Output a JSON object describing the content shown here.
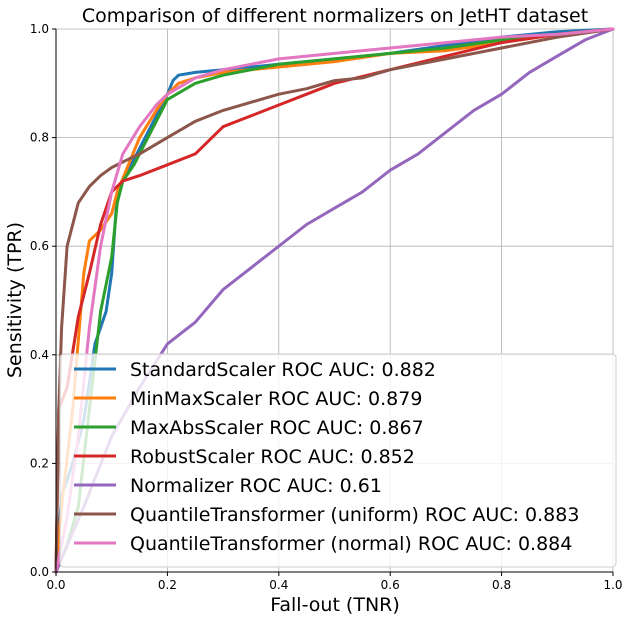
{
  "chart_data": {
    "type": "line",
    "title": "Comparison of different normalizers on JetHT dataset",
    "xlabel": "Fall-out (TNR)",
    "ylabel": "Sensitivity (TPR)",
    "xlim": [
      0.0,
      1.0
    ],
    "ylim": [
      0.0,
      1.0
    ],
    "xticks": [
      "0.0",
      "0.2",
      "0.4",
      "0.6",
      "0.8",
      "1.0"
    ],
    "yticks": [
      "0.0",
      "0.2",
      "0.4",
      "0.6",
      "0.8",
      "1.0"
    ],
    "grid": true,
    "legend_position": "lower-right",
    "series": [
      {
        "name": "StandardScaler ROC AUC: 0.882",
        "color": "#1f77b4",
        "x": [
          0,
          0.01,
          0.03,
          0.05,
          0.07,
          0.09,
          0.1,
          0.11,
          0.13,
          0.15,
          0.18,
          0.2,
          0.21,
          0.22,
          0.25,
          0.3,
          0.4,
          0.5,
          0.6,
          0.7,
          0.8,
          0.9,
          1.0
        ],
        "y": [
          0,
          0.14,
          0.2,
          0.28,
          0.42,
          0.48,
          0.55,
          0.7,
          0.74,
          0.78,
          0.84,
          0.88,
          0.905,
          0.915,
          0.92,
          0.925,
          0.935,
          0.945,
          0.955,
          0.97,
          0.985,
          0.995,
          1.0
        ]
      },
      {
        "name": "MinMaxScaler ROC AUC: 0.879",
        "color": "#ff7f0e",
        "x": [
          0,
          0.01,
          0.03,
          0.05,
          0.06,
          0.08,
          0.1,
          0.11,
          0.13,
          0.15,
          0.18,
          0.2,
          0.22,
          0.25,
          0.3,
          0.4,
          0.5,
          0.6,
          0.7,
          0.8,
          0.9,
          1.0
        ],
        "y": [
          0,
          0.12,
          0.3,
          0.55,
          0.61,
          0.63,
          0.66,
          0.7,
          0.75,
          0.8,
          0.85,
          0.88,
          0.9,
          0.91,
          0.92,
          0.93,
          0.94,
          0.955,
          0.96,
          0.975,
          0.99,
          1.0
        ]
      },
      {
        "name": "MaxAbsScaler ROC AUC: 0.867",
        "color": "#2ca02c",
        "x": [
          0,
          0.02,
          0.04,
          0.06,
          0.08,
          0.1,
          0.11,
          0.12,
          0.14,
          0.16,
          0.18,
          0.2,
          0.25,
          0.3,
          0.4,
          0.5,
          0.6,
          0.7,
          0.8,
          0.9,
          1.0
        ],
        "y": [
          0,
          0.05,
          0.12,
          0.3,
          0.48,
          0.58,
          0.68,
          0.72,
          0.75,
          0.79,
          0.83,
          0.87,
          0.9,
          0.915,
          0.935,
          0.945,
          0.955,
          0.965,
          0.98,
          0.99,
          1.0
        ]
      },
      {
        "name": "RobustScaler ROC AUC: 0.852",
        "color": "#d62728",
        "x": [
          0,
          0.005,
          0.02,
          0.04,
          0.06,
          0.08,
          0.1,
          0.12,
          0.15,
          0.2,
          0.25,
          0.28,
          0.3,
          0.35,
          0.4,
          0.45,
          0.5,
          0.6,
          0.7,
          0.8,
          0.9,
          1.0
        ],
        "y": [
          0,
          0.3,
          0.34,
          0.47,
          0.55,
          0.64,
          0.7,
          0.72,
          0.73,
          0.75,
          0.77,
          0.8,
          0.82,
          0.84,
          0.86,
          0.88,
          0.9,
          0.925,
          0.95,
          0.975,
          0.99,
          1.0
        ]
      },
      {
        "name": "Normalizer ROC AUC: 0.61",
        "color": "#9467bd",
        "x": [
          0,
          0.05,
          0.1,
          0.15,
          0.2,
          0.25,
          0.3,
          0.35,
          0.4,
          0.45,
          0.5,
          0.55,
          0.6,
          0.65,
          0.7,
          0.75,
          0.8,
          0.85,
          0.9,
          0.95,
          1.0
        ],
        "y": [
          0,
          0.12,
          0.25,
          0.34,
          0.42,
          0.46,
          0.52,
          0.56,
          0.6,
          0.64,
          0.67,
          0.7,
          0.74,
          0.77,
          0.81,
          0.85,
          0.88,
          0.92,
          0.95,
          0.98,
          1.0
        ]
      },
      {
        "name": "QuantileTransformer (uniform) ROC AUC: 0.883",
        "color": "#8c564b",
        "x": [
          0,
          0.005,
          0.01,
          0.02,
          0.04,
          0.06,
          0.08,
          0.1,
          0.12,
          0.15,
          0.2,
          0.25,
          0.3,
          0.35,
          0.4,
          0.45,
          0.5,
          0.55,
          0.6,
          0.7,
          0.8,
          0.9,
          1.0
        ],
        "y": [
          0,
          0.3,
          0.45,
          0.6,
          0.68,
          0.71,
          0.73,
          0.745,
          0.755,
          0.77,
          0.8,
          0.83,
          0.85,
          0.865,
          0.88,
          0.89,
          0.905,
          0.91,
          0.925,
          0.945,
          0.965,
          0.985,
          1.0
        ]
      },
      {
        "name": "QuantileTransformer (normal) ROC AUC: 0.884",
        "color": "#e377c2",
        "x": [
          0,
          0.02,
          0.04,
          0.06,
          0.08,
          0.1,
          0.12,
          0.15,
          0.18,
          0.2,
          0.25,
          0.3,
          0.35,
          0.4,
          0.5,
          0.6,
          0.7,
          0.8,
          0.9,
          0.95,
          1.0
        ],
        "y": [
          0,
          0.1,
          0.25,
          0.45,
          0.6,
          0.7,
          0.77,
          0.82,
          0.86,
          0.88,
          0.91,
          0.925,
          0.935,
          0.945,
          0.955,
          0.965,
          0.975,
          0.985,
          0.99,
          0.995,
          1.0
        ]
      }
    ]
  }
}
